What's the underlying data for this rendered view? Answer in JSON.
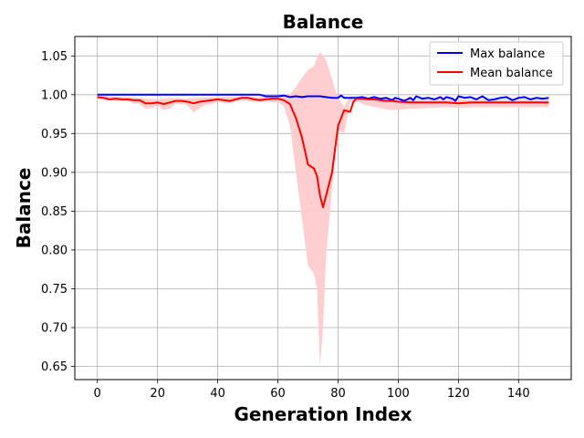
{
  "chart_data": {
    "type": "line",
    "title": "Balance",
    "xlabel": "Generation Index",
    "ylabel": "Balance",
    "xlim": [
      -7.5,
      157.5
    ],
    "ylim": [
      0.633,
      1.075
    ],
    "xticks": [
      0,
      20,
      40,
      60,
      80,
      100,
      120,
      140
    ],
    "yticks": [
      0.65,
      0.7,
      0.75,
      0.8,
      0.85,
      0.9,
      0.95,
      1.0,
      1.05
    ],
    "ytick_labels": [
      "0.65",
      "0.70",
      "0.75",
      "0.80",
      "0.85",
      "0.90",
      "0.95",
      "1.00",
      "1.05"
    ],
    "grid": true,
    "legend_position": "top-right",
    "series": [
      {
        "name": "Max balance",
        "color": "#0000ff",
        "points": [
          [
            0,
            1.0
          ],
          [
            10,
            1.0
          ],
          [
            20,
            1.0
          ],
          [
            30,
            1.0
          ],
          [
            40,
            1.0
          ],
          [
            50,
            1.0
          ],
          [
            54,
            1.0
          ],
          [
            56,
            0.998
          ],
          [
            60,
            0.998
          ],
          [
            62,
            0.999
          ],
          [
            64,
            0.997
          ],
          [
            66,
            0.998
          ],
          [
            68,
            0.997
          ],
          [
            70,
            0.998
          ],
          [
            74,
            0.998
          ],
          [
            78,
            0.996
          ],
          [
            80,
            0.996
          ],
          [
            81,
            0.999
          ],
          [
            82,
            0.996
          ],
          [
            84,
            0.996
          ],
          [
            86,
            0.996
          ],
          [
            88,
            0.997
          ],
          [
            90,
            0.995
          ],
          [
            92,
            0.997
          ],
          [
            94,
            0.995
          ],
          [
            96,
            0.996
          ],
          [
            98,
            0.993
          ],
          [
            99,
            0.996
          ],
          [
            100,
            0.995
          ],
          [
            102,
            0.992
          ],
          [
            104,
            0.996
          ],
          [
            105,
            0.993
          ],
          [
            106,
            0.998
          ],
          [
            108,
            0.995
          ],
          [
            110,
            0.996
          ],
          [
            112,
            0.994
          ],
          [
            114,
            0.997
          ],
          [
            115,
            0.994
          ],
          [
            116,
            0.997
          ],
          [
            118,
            0.995
          ],
          [
            119,
            0.992
          ],
          [
            120,
            0.998
          ],
          [
            122,
            0.996
          ],
          [
            124,
            0.997
          ],
          [
            126,
            0.994
          ],
          [
            128,
            0.998
          ],
          [
            130,
            0.993
          ],
          [
            132,
            0.994
          ],
          [
            134,
            0.996
          ],
          [
            136,
            0.997
          ],
          [
            138,
            0.993
          ],
          [
            140,
            0.996
          ],
          [
            142,
            0.997
          ],
          [
            144,
            0.994
          ],
          [
            146,
            0.996
          ],
          [
            148,
            0.995
          ],
          [
            150,
            0.996
          ]
        ]
      },
      {
        "name": "Mean balance",
        "color": "#ff0000",
        "band_color": "#ffcccc",
        "points": [
          [
            0,
            0.997
          ],
          [
            2,
            0.996
          ],
          [
            4,
            0.994
          ],
          [
            6,
            0.995
          ],
          [
            8,
            0.994
          ],
          [
            10,
            0.994
          ],
          [
            12,
            0.993
          ],
          [
            14,
            0.993
          ],
          [
            16,
            0.989
          ],
          [
            18,
            0.989
          ],
          [
            20,
            0.99
          ],
          [
            22,
            0.988
          ],
          [
            24,
            0.99
          ],
          [
            26,
            0.992
          ],
          [
            28,
            0.992
          ],
          [
            30,
            0.991
          ],
          [
            32,
            0.989
          ],
          [
            34,
            0.991
          ],
          [
            36,
            0.992
          ],
          [
            38,
            0.993
          ],
          [
            40,
            0.994
          ],
          [
            42,
            0.993
          ],
          [
            44,
            0.992
          ],
          [
            46,
            0.994
          ],
          [
            48,
            0.996
          ],
          [
            50,
            0.996
          ],
          [
            52,
            0.994
          ],
          [
            54,
            0.993
          ],
          [
            56,
            0.994
          ],
          [
            58,
            0.995
          ],
          [
            60,
            0.995
          ],
          [
            62,
            0.993
          ],
          [
            64,
            0.988
          ],
          [
            66,
            0.97
          ],
          [
            68,
            0.945
          ],
          [
            70,
            0.91
          ],
          [
            72,
            0.905
          ],
          [
            73,
            0.895
          ],
          [
            74,
            0.87
          ],
          [
            75,
            0.855
          ],
          [
            76,
            0.87
          ],
          [
            78,
            0.9
          ],
          [
            80,
            0.96
          ],
          [
            82,
            0.98
          ],
          [
            84,
            0.978
          ],
          [
            85,
            0.99
          ],
          [
            86,
            0.995
          ],
          [
            88,
            0.995
          ],
          [
            90,
            0.994
          ],
          [
            92,
            0.994
          ],
          [
            94,
            0.993
          ],
          [
            96,
            0.992
          ],
          [
            98,
            0.992
          ],
          [
            100,
            0.991
          ],
          [
            104,
            0.99
          ],
          [
            108,
            0.99
          ],
          [
            112,
            0.99
          ],
          [
            116,
            0.99
          ],
          [
            120,
            0.989
          ],
          [
            124,
            0.99
          ],
          [
            128,
            0.99
          ],
          [
            132,
            0.99
          ],
          [
            136,
            0.99
          ],
          [
            140,
            0.99
          ],
          [
            144,
            0.99
          ],
          [
            150,
            0.99
          ]
        ],
        "band_lower": [
          [
            0,
            0.994
          ],
          [
            10,
            0.991
          ],
          [
            14,
            0.988
          ],
          [
            16,
            0.982
          ],
          [
            18,
            0.983
          ],
          [
            20,
            0.986
          ],
          [
            22,
            0.98
          ],
          [
            24,
            0.982
          ],
          [
            26,
            0.988
          ],
          [
            28,
            0.988
          ],
          [
            30,
            0.986
          ],
          [
            32,
            0.977
          ],
          [
            34,
            0.983
          ],
          [
            36,
            0.987
          ],
          [
            38,
            0.988
          ],
          [
            40,
            0.991
          ],
          [
            44,
            0.989
          ],
          [
            48,
            0.993
          ],
          [
            52,
            0.991
          ],
          [
            56,
            0.991
          ],
          [
            60,
            0.99
          ],
          [
            62,
            0.985
          ],
          [
            64,
            0.96
          ],
          [
            66,
            0.9
          ],
          [
            68,
            0.84
          ],
          [
            70,
            0.78
          ],
          [
            72,
            0.77
          ],
          [
            73,
            0.75
          ],
          [
            74,
            0.65
          ],
          [
            75,
            0.7
          ],
          [
            76,
            0.79
          ],
          [
            78,
            0.88
          ],
          [
            80,
            0.955
          ],
          [
            82,
            0.95
          ],
          [
            84,
            0.99
          ],
          [
            86,
            0.992
          ],
          [
            88,
            0.988
          ],
          [
            90,
            0.986
          ],
          [
            94,
            0.983
          ],
          [
            98,
            0.98
          ],
          [
            104,
            0.982
          ],
          [
            110,
            0.983
          ],
          [
            116,
            0.984
          ],
          [
            120,
            0.983
          ],
          [
            126,
            0.984
          ],
          [
            132,
            0.984
          ],
          [
            140,
            0.984
          ],
          [
            150,
            0.984
          ]
        ],
        "band_upper": [
          [
            0,
            0.999
          ],
          [
            10,
            0.997
          ],
          [
            16,
            0.995
          ],
          [
            20,
            0.994
          ],
          [
            24,
            0.996
          ],
          [
            30,
            0.995
          ],
          [
            34,
            0.996
          ],
          [
            40,
            0.997
          ],
          [
            48,
            0.998
          ],
          [
            54,
            0.997
          ],
          [
            58,
            0.998
          ],
          [
            60,
            0.998
          ],
          [
            62,
            0.999
          ],
          [
            64,
            1.0
          ],
          [
            66,
            1.01
          ],
          [
            68,
            1.022
          ],
          [
            70,
            1.032
          ],
          [
            72,
            1.037
          ],
          [
            73,
            1.048
          ],
          [
            74,
            1.055
          ],
          [
            75,
            1.05
          ],
          [
            76,
            1.045
          ],
          [
            78,
            1.02
          ],
          [
            80,
            0.995
          ],
          [
            82,
            0.985
          ],
          [
            84,
            0.998
          ],
          [
            86,
            0.998
          ],
          [
            90,
            0.997
          ],
          [
            94,
            0.996
          ],
          [
            100,
            0.995
          ],
          [
            110,
            0.994
          ],
          [
            120,
            0.994
          ],
          [
            130,
            0.994
          ],
          [
            140,
            0.994
          ],
          [
            150,
            0.994
          ]
        ]
      }
    ]
  }
}
